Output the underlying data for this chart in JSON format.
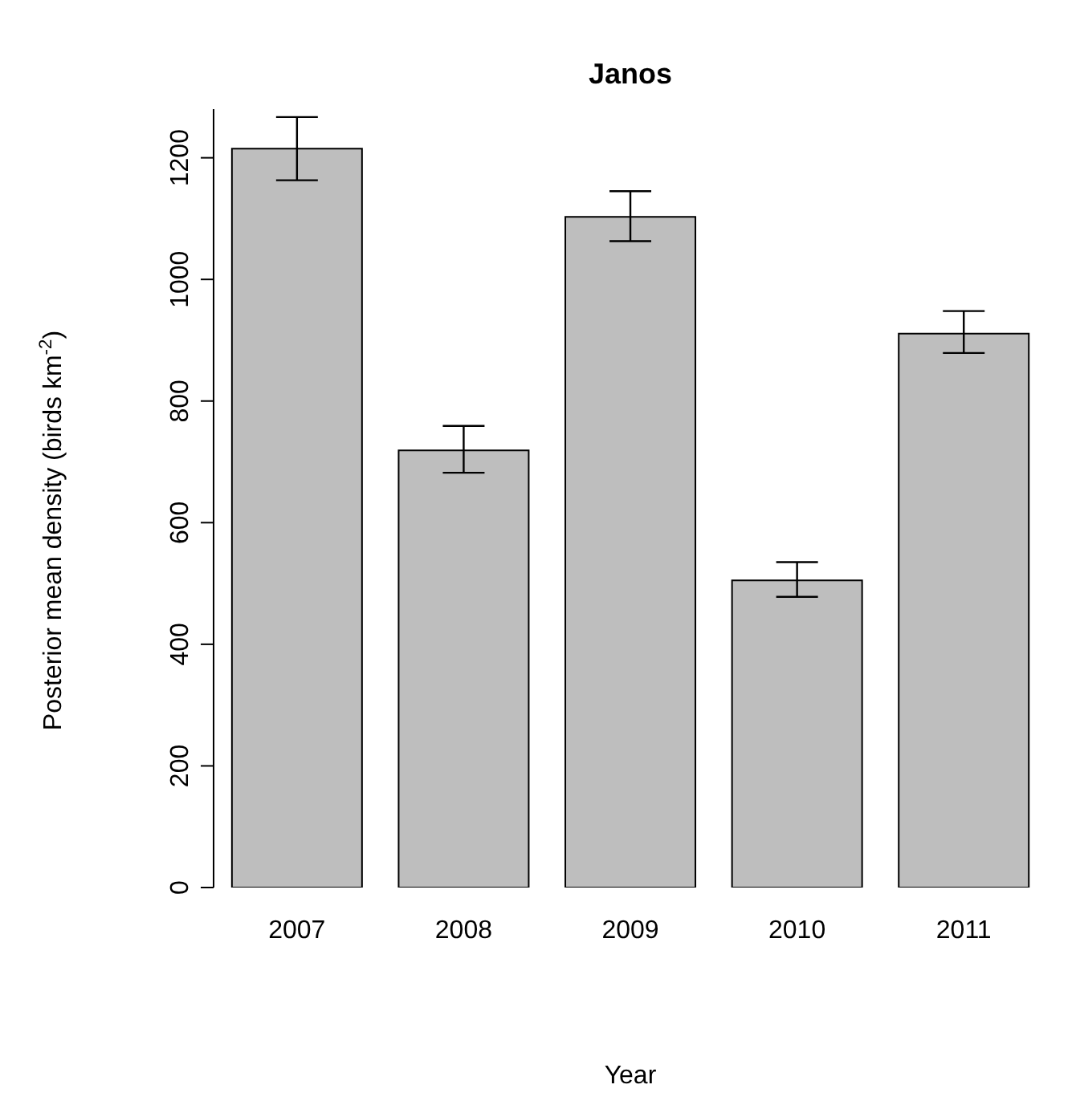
{
  "chart_data": {
    "type": "bar",
    "title": "Janos",
    "xlabel": "Year",
    "ylabel": "Posterior mean density (birds km$^{-2}$)",
    "categories": [
      "2007",
      "2008",
      "2009",
      "2010",
      "2011"
    ],
    "values": [
      1215,
      719,
      1103,
      505,
      911
    ],
    "errors": [
      [
        1163,
        1267
      ],
      [
        682,
        759
      ],
      [
        1063,
        1145
      ],
      [
        478,
        535
      ],
      [
        879,
        948
      ]
    ],
    "color": "#bebebe",
    "ylim": [
      0,
      1280
    ],
    "yticks": [
      0,
      200,
      400,
      600,
      800,
      1000,
      1200
    ],
    "grid": false,
    "legend": false
  }
}
